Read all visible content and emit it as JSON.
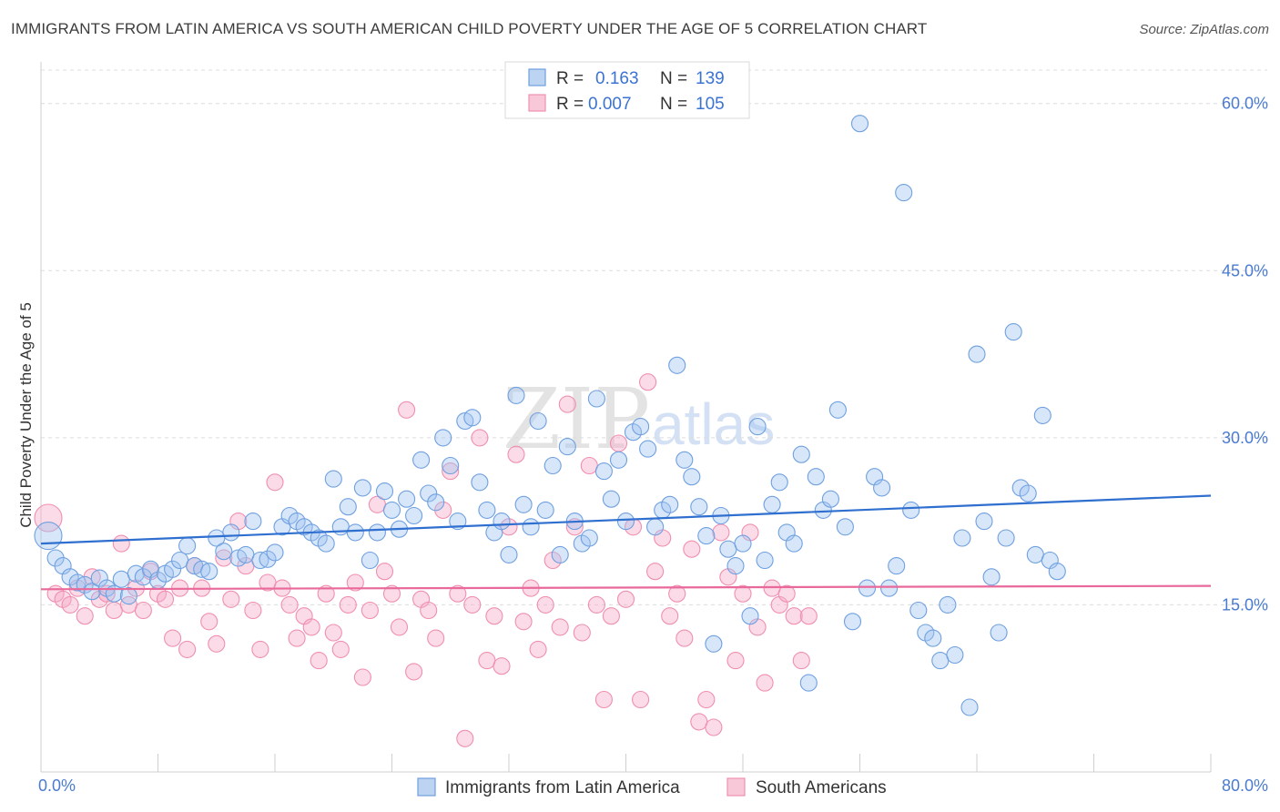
{
  "header": {
    "title": "IMMIGRANTS FROM LATIN AMERICA VS SOUTH AMERICAN CHILD POVERTY UNDER THE AGE OF 5 CORRELATION CHART",
    "source": "Source: ZipAtlas.com"
  },
  "watermark": {
    "zip": "ZIP",
    "atlas": "atlas"
  },
  "legend": {
    "r_label": "R =",
    "n_label": "N =",
    "series": [
      {
        "r": "0.163",
        "n": "139"
      },
      {
        "r": "0.007",
        "n": "105"
      }
    ]
  },
  "bottom_legend": [
    {
      "label": "Immigrants from Latin America"
    },
    {
      "label": "South Americans"
    }
  ],
  "colors": {
    "blue": "#6fa0e0",
    "blue_line": "#2f6fcf",
    "pink": "#f08fb0",
    "pink_line": "#e8699a",
    "tick": "#4a7bd0"
  },
  "chart_data": {
    "type": "scatter",
    "ylabel": "Child Poverty Under the Age of 5",
    "x_tick_labels": [
      "0.0%",
      "80.0%"
    ],
    "y_tick_labels": [
      "15.0%",
      "30.0%",
      "45.0%",
      "60.0%"
    ],
    "y_ticks": [
      15,
      30,
      45,
      60
    ],
    "xlim": [
      0,
      80
    ],
    "ylim": [
      0,
      63
    ],
    "series": [
      {
        "name": "Immigrants from Latin America",
        "color": "#6fa0e0",
        "trend": [
          [
            0,
            20.5
          ],
          [
            80,
            24.8
          ]
        ],
        "points": [
          [
            0.5,
            21.2
          ],
          [
            1,
            19.2
          ],
          [
            1.5,
            18.5
          ],
          [
            2,
            17.5
          ],
          [
            2.5,
            17.0
          ],
          [
            3,
            16.8
          ],
          [
            3.5,
            16.2
          ],
          [
            4,
            17.4
          ],
          [
            4.5,
            16.5
          ],
          [
            5,
            16.0
          ],
          [
            5.5,
            17.3
          ],
          [
            6,
            15.8
          ],
          [
            6.5,
            17.8
          ],
          [
            7,
            17.5
          ],
          [
            7.5,
            18.2
          ],
          [
            8,
            17.2
          ],
          [
            8.5,
            17.8
          ],
          [
            9,
            18.2
          ],
          [
            9.5,
            19.0
          ],
          [
            10,
            20.3
          ],
          [
            10.5,
            18.5
          ],
          [
            11,
            18.2
          ],
          [
            11.5,
            18.0
          ],
          [
            12,
            21.0
          ],
          [
            12.5,
            19.8
          ],
          [
            13,
            21.5
          ],
          [
            13.5,
            19.2
          ],
          [
            14,
            19.5
          ],
          [
            14.5,
            22.5
          ],
          [
            15,
            19.0
          ],
          [
            15.5,
            19.1
          ],
          [
            16,
            19.7
          ],
          [
            16.5,
            22.0
          ],
          [
            17,
            23.0
          ],
          [
            17.5,
            22.5
          ],
          [
            18,
            22.0
          ],
          [
            18.5,
            21.5
          ],
          [
            19,
            21.0
          ],
          [
            19.5,
            20.5
          ],
          [
            20,
            26.3
          ],
          [
            20.5,
            22.0
          ],
          [
            21,
            23.8
          ],
          [
            21.5,
            21.5
          ],
          [
            22,
            25.5
          ],
          [
            22.5,
            19.0
          ],
          [
            23,
            21.5
          ],
          [
            23.5,
            25.2
          ],
          [
            24,
            23.5
          ],
          [
            24.5,
            21.8
          ],
          [
            25,
            24.5
          ],
          [
            25.5,
            23.0
          ],
          [
            26,
            28.0
          ],
          [
            26.5,
            25.0
          ],
          [
            27,
            24.2
          ],
          [
            27.5,
            30.0
          ],
          [
            28,
            27.5
          ],
          [
            28.5,
            22.5
          ],
          [
            29,
            31.5
          ],
          [
            29.5,
            31.8
          ],
          [
            30,
            26.0
          ],
          [
            30.5,
            23.5
          ],
          [
            31,
            21.5
          ],
          [
            31.5,
            22.5
          ],
          [
            32,
            19.5
          ],
          [
            32.5,
            33.8
          ],
          [
            33,
            24.0
          ],
          [
            33.5,
            22.0
          ],
          [
            34,
            31.5
          ],
          [
            34.5,
            23.5
          ],
          [
            35,
            27.5
          ],
          [
            35.5,
            19.5
          ],
          [
            36,
            29.2
          ],
          [
            36.5,
            22.5
          ],
          [
            37,
            20.5
          ],
          [
            37.5,
            21.0
          ],
          [
            38,
            33.5
          ],
          [
            38.5,
            27.0
          ],
          [
            39,
            24.5
          ],
          [
            39.5,
            28.0
          ],
          [
            40,
            22.5
          ],
          [
            40.5,
            30.5
          ],
          [
            41,
            31.0
          ],
          [
            41.5,
            29.0
          ],
          [
            42,
            22.0
          ],
          [
            42.5,
            23.5
          ],
          [
            43,
            24.0
          ],
          [
            43.5,
            36.5
          ],
          [
            44,
            28.0
          ],
          [
            44.5,
            26.5
          ],
          [
            45,
            23.8
          ],
          [
            45.5,
            21.2
          ],
          [
            46,
            11.5
          ],
          [
            46.5,
            23.0
          ],
          [
            47,
            20.0
          ],
          [
            47.5,
            18.5
          ],
          [
            48,
            20.5
          ],
          [
            48.5,
            14.0
          ],
          [
            49,
            31.0
          ],
          [
            49.5,
            19.0
          ],
          [
            50,
            24.0
          ],
          [
            50.5,
            26.0
          ],
          [
            51,
            21.5
          ],
          [
            51.5,
            20.5
          ],
          [
            52,
            28.5
          ],
          [
            52.5,
            8.0
          ],
          [
            53,
            26.5
          ],
          [
            53.5,
            23.5
          ],
          [
            54,
            24.5
          ],
          [
            54.5,
            32.5
          ],
          [
            55,
            22.0
          ],
          [
            55.5,
            13.5
          ],
          [
            56,
            58.2
          ],
          [
            56.5,
            16.5
          ],
          [
            57,
            26.5
          ],
          [
            57.5,
            25.5
          ],
          [
            58,
            16.5
          ],
          [
            58.5,
            18.5
          ],
          [
            59,
            52.0
          ],
          [
            59.5,
            23.5
          ],
          [
            60,
            14.5
          ],
          [
            60.5,
            12.5
          ],
          [
            61,
            12.0
          ],
          [
            61.5,
            10.0
          ],
          [
            62,
            15.0
          ],
          [
            62.5,
            10.5
          ],
          [
            63,
            21.0
          ],
          [
            63.5,
            5.8
          ],
          [
            64,
            37.5
          ],
          [
            64.5,
            22.5
          ],
          [
            65,
            17.5
          ],
          [
            65.5,
            12.5
          ],
          [
            66,
            21.0
          ],
          [
            66.5,
            39.5
          ],
          [
            67,
            25.5
          ],
          [
            67.5,
            25.0
          ],
          [
            68,
            19.5
          ],
          [
            68.5,
            32.0
          ],
          [
            69,
            19.0
          ],
          [
            69.5,
            18.0
          ]
        ]
      },
      {
        "name": "South Americans",
        "color": "#f08fb0",
        "trend": [
          [
            0,
            16.4
          ],
          [
            80,
            16.7
          ]
        ],
        "points": [
          [
            0.5,
            22.8
          ],
          [
            1,
            16.0
          ],
          [
            1.5,
            15.5
          ],
          [
            2,
            15.0
          ],
          [
            2.5,
            16.5
          ],
          [
            3,
            14.0
          ],
          [
            3.5,
            17.5
          ],
          [
            4,
            15.5
          ],
          [
            4.5,
            16.0
          ],
          [
            5,
            14.5
          ],
          [
            5.5,
            20.5
          ],
          [
            6,
            15.0
          ],
          [
            6.5,
            16.5
          ],
          [
            7,
            14.5
          ],
          [
            7.5,
            18.0
          ],
          [
            8,
            16.0
          ],
          [
            8.5,
            15.5
          ],
          [
            9,
            12.0
          ],
          [
            9.5,
            16.5
          ],
          [
            10,
            11.0
          ],
          [
            10.5,
            18.5
          ],
          [
            11,
            16.5
          ],
          [
            11.5,
            13.5
          ],
          [
            12,
            11.5
          ],
          [
            12.5,
            19.2
          ],
          [
            13,
            15.5
          ],
          [
            13.5,
            22.5
          ],
          [
            14,
            18.5
          ],
          [
            14.5,
            14.5
          ],
          [
            15,
            11.0
          ],
          [
            15.5,
            17.0
          ],
          [
            16,
            26.0
          ],
          [
            16.5,
            16.5
          ],
          [
            17,
            15.0
          ],
          [
            17.5,
            12.0
          ],
          [
            18,
            14.0
          ],
          [
            18.5,
            13.0
          ],
          [
            19,
            10.0
          ],
          [
            19.5,
            16.0
          ],
          [
            20,
            12.5
          ],
          [
            20.5,
            11.0
          ],
          [
            21,
            15.0
          ],
          [
            21.5,
            17.0
          ],
          [
            22,
            8.5
          ],
          [
            22.5,
            14.5
          ],
          [
            23,
            24.0
          ],
          [
            23.5,
            18.0
          ],
          [
            24,
            16.0
          ],
          [
            24.5,
            13.0
          ],
          [
            25,
            32.5
          ],
          [
            25.5,
            9.0
          ],
          [
            26,
            15.5
          ],
          [
            26.5,
            14.5
          ],
          [
            27,
            12.0
          ],
          [
            27.5,
            23.5
          ],
          [
            28,
            27.0
          ],
          [
            28.5,
            16.0
          ],
          [
            29,
            3.0
          ],
          [
            29.5,
            15.0
          ],
          [
            30,
            30.0
          ],
          [
            30.5,
            10.0
          ],
          [
            31,
            14.0
          ],
          [
            31.5,
            9.5
          ],
          [
            32,
            22.0
          ],
          [
            32.5,
            28.5
          ],
          [
            33,
            13.5
          ],
          [
            33.5,
            16.5
          ],
          [
            34,
            11.0
          ],
          [
            34.5,
            15.0
          ],
          [
            35,
            19.0
          ],
          [
            35.5,
            13.0
          ],
          [
            36,
            33.0
          ],
          [
            36.5,
            22.0
          ],
          [
            37,
            12.5
          ],
          [
            37.5,
            27.5
          ],
          [
            38,
            15.0
          ],
          [
            38.5,
            6.5
          ],
          [
            39,
            14.0
          ],
          [
            39.5,
            29.5
          ],
          [
            40,
            15.5
          ],
          [
            40.5,
            22.0
          ],
          [
            41,
            6.5
          ],
          [
            41.5,
            35.0
          ],
          [
            42,
            18.0
          ],
          [
            42.5,
            21.0
          ],
          [
            43,
            14.0
          ],
          [
            43.5,
            16.0
          ],
          [
            44,
            12.0
          ],
          [
            44.5,
            20.0
          ],
          [
            45,
            4.5
          ],
          [
            45.5,
            6.5
          ],
          [
            46,
            4.0
          ],
          [
            46.5,
            21.5
          ],
          [
            47,
            17.5
          ],
          [
            47.5,
            10.0
          ],
          [
            48,
            16.0
          ],
          [
            48.5,
            21.5
          ],
          [
            49,
            13.0
          ],
          [
            49.5,
            8.0
          ],
          [
            50,
            16.5
          ],
          [
            50.5,
            15.0
          ],
          [
            51,
            16.0
          ],
          [
            51.5,
            14.0
          ],
          [
            52,
            10.0
          ],
          [
            52.5,
            14.0
          ]
        ]
      }
    ]
  }
}
